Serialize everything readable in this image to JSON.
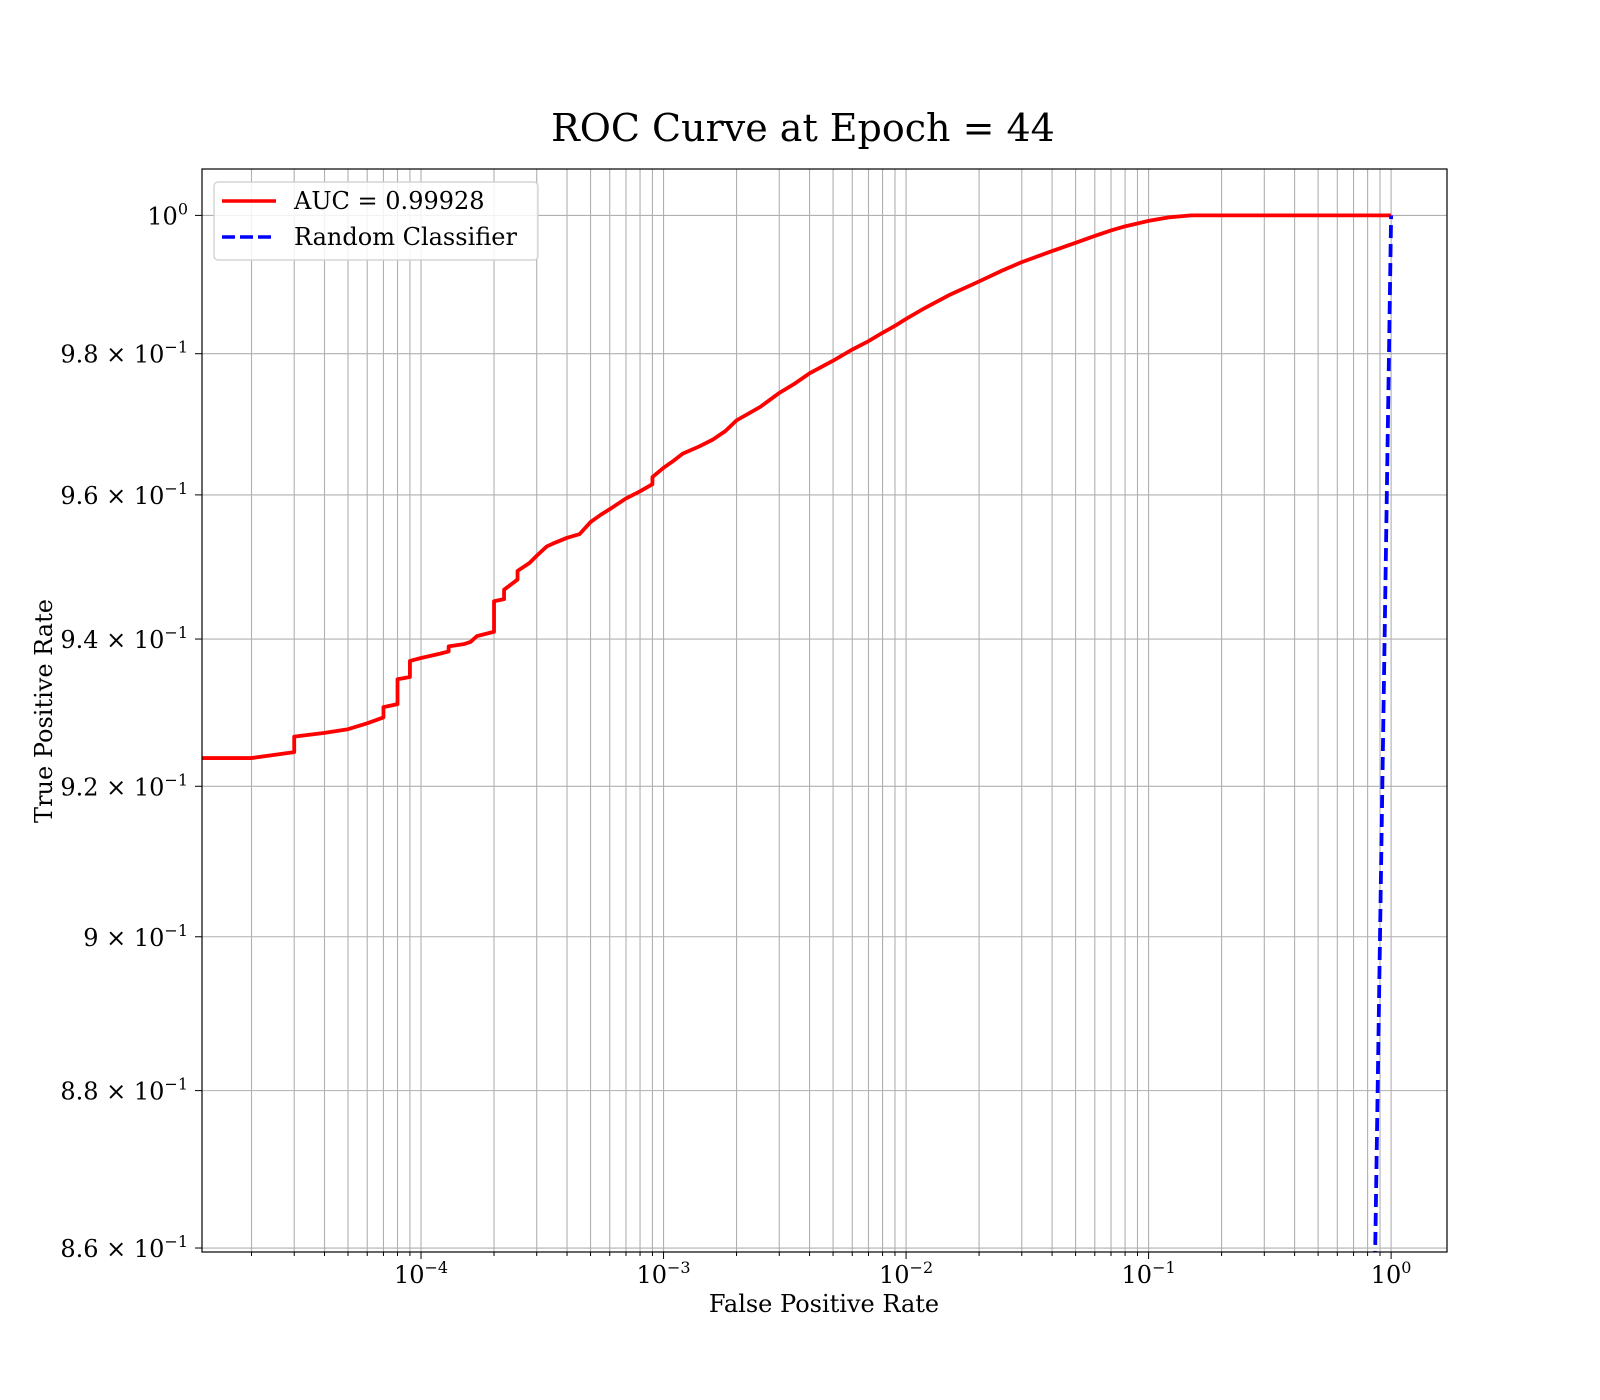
{
  "chart_data": {
    "type": "line",
    "title": "ROC Curve at Epoch = 44",
    "xlabel": "False Positive Rate",
    "ylabel": "True Positive Rate",
    "x_scale": "log",
    "y_scale": "log",
    "xlim": [
      1.25e-05,
      1.7
    ],
    "ylim": [
      0.8595,
      1.0068
    ],
    "x_ticks": [
      {
        "value": 0.0001,
        "base": "10",
        "exp": "−4"
      },
      {
        "value": 0.001,
        "base": "10",
        "exp": "−3"
      },
      {
        "value": 0.01,
        "base": "10",
        "exp": "−2"
      },
      {
        "value": 0.1,
        "base": "10",
        "exp": "−1"
      },
      {
        "value": 1,
        "base": "10",
        "exp": "0"
      }
    ],
    "y_ticks": [
      {
        "value": 0.86,
        "base": "8.6 × 10",
        "exp": "−1"
      },
      {
        "value": 0.88,
        "base": "8.8 × 10",
        "exp": "−1"
      },
      {
        "value": 0.9,
        "base": "9 × 10",
        "exp": "−1"
      },
      {
        "value": 0.92,
        "base": "9.2 × 10",
        "exp": "−1"
      },
      {
        "value": 0.94,
        "base": "9.4 × 10",
        "exp": "−1"
      },
      {
        "value": 0.96,
        "base": "9.6 × 10",
        "exp": "−1"
      },
      {
        "value": 0.98,
        "base": "9.8 × 10",
        "exp": "−1"
      },
      {
        "value": 1.0,
        "base": "10",
        "exp": "0"
      }
    ],
    "grid": true,
    "legend_position": "upper-left",
    "series": [
      {
        "name": "AUC = 0.99928",
        "color": "#ff0000",
        "style": "solid",
        "x": [
          1.25e-05,
          2e-05,
          3e-05,
          3e-05,
          4e-05,
          5e-05,
          6e-05,
          7e-05,
          7e-05,
          8e-05,
          8e-05,
          9e-05,
          9e-05,
          0.0001,
          0.00012,
          0.00013,
          0.00013,
          0.00015,
          0.00016,
          0.00017,
          0.0002,
          0.0002,
          0.00022,
          0.00022,
          0.00025,
          0.00025,
          0.00028,
          0.0003,
          0.00033,
          0.00035,
          0.0004,
          0.00045,
          0.0005,
          0.00055,
          0.0006,
          0.0007,
          0.0008,
          0.0009,
          0.0009,
          0.001,
          0.0011,
          0.0012,
          0.0014,
          0.0016,
          0.0018,
          0.002,
          0.0025,
          0.003,
          0.0035,
          0.004,
          0.005,
          0.006,
          0.007,
          0.008,
          0.009,
          0.01,
          0.012,
          0.015,
          0.02,
          0.025,
          0.03,
          0.04,
          0.05,
          0.06,
          0.07,
          0.08,
          0.1,
          0.12,
          0.15,
          0.2,
          0.25,
          0.3,
          0.5,
          1.0
        ],
        "y": [
          0.9238,
          0.9238,
          0.9246,
          0.9267,
          0.9272,
          0.9277,
          0.9285,
          0.9293,
          0.9307,
          0.9311,
          0.9345,
          0.9348,
          0.937,
          0.9374,
          0.938,
          0.9383,
          0.939,
          0.9393,
          0.9396,
          0.9404,
          0.941,
          0.9452,
          0.9455,
          0.9468,
          0.9482,
          0.9494,
          0.9505,
          0.9515,
          0.9528,
          0.9532,
          0.954,
          0.9545,
          0.9562,
          0.9572,
          0.958,
          0.9595,
          0.9605,
          0.9615,
          0.9625,
          0.9638,
          0.9648,
          0.9658,
          0.9668,
          0.9678,
          0.969,
          0.9705,
          0.9724,
          0.9744,
          0.9758,
          0.9772,
          0.979,
          0.9806,
          0.9818,
          0.983,
          0.984,
          0.985,
          0.9866,
          0.9884,
          0.9904,
          0.992,
          0.9932,
          0.9948,
          0.996,
          0.997,
          0.9978,
          0.9984,
          0.9992,
          0.9997,
          1.0,
          1.0,
          1.0,
          1.0,
          1.0,
          1.0
        ]
      },
      {
        "name": "Random Classifier",
        "color": "#0000ff",
        "style": "dashed",
        "x": [
          0.858,
          0.9,
          1.0
        ],
        "y": [
          0.858,
          0.9,
          1.0
        ]
      }
    ]
  }
}
